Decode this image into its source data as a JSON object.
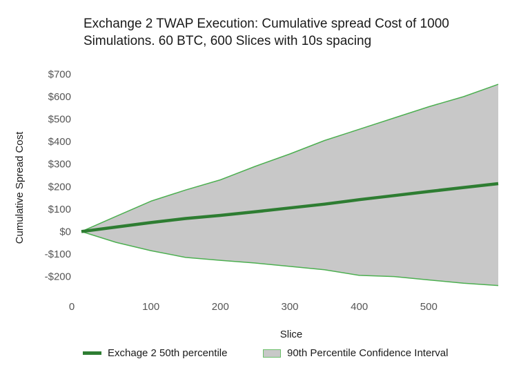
{
  "chart_data": {
    "type": "area",
    "title_line1": "Exchange 2 TWAP Execution: Cumulative spread Cost of 1000",
    "title_line2": "Simulations. 60 BTC, 600 Slices with 10s spacing",
    "xlabel": "Slice",
    "ylabel": "Cumulative Spread Cost",
    "xlim": [
      0,
      600
    ],
    "ylim": [
      -250,
      700
    ],
    "x_ticks": [
      0,
      100,
      200,
      300,
      400,
      500
    ],
    "x_tick_labels": [
      "0",
      "100",
      "200",
      "300",
      "400",
      "500"
    ],
    "y_ticks": [
      700,
      600,
      500,
      400,
      300,
      200,
      100,
      0,
      -100,
      -200
    ],
    "y_tick_labels": [
      "$700",
      "$600",
      "$500",
      "$400",
      "$300",
      "$200",
      "$100",
      "$0",
      "-$100",
      "-$200"
    ],
    "grid": false,
    "legend_position": "bottom",
    "series": [
      {
        "name": "Exchage 2 50th percentile",
        "kind": "line",
        "color": "#2e7d32",
        "x": [
          0,
          50,
          100,
          150,
          200,
          250,
          300,
          350,
          400,
          450,
          500,
          550,
          600
        ],
        "y": [
          0,
          20,
          40,
          58,
          72,
          88,
          105,
          122,
          142,
          160,
          178,
          196,
          213
        ]
      },
      {
        "name": "90th Percentile Confidence Interval",
        "kind": "band",
        "fill": "#c8c8c8",
        "edge": "#4caf50",
        "x": [
          0,
          50,
          100,
          150,
          200,
          250,
          300,
          350,
          400,
          450,
          500,
          550,
          600
        ],
        "upper": [
          0,
          68,
          135,
          185,
          230,
          290,
          345,
          405,
          455,
          505,
          555,
          600,
          655
        ],
        "lower": [
          0,
          -48,
          -85,
          -115,
          -128,
          -140,
          -155,
          -170,
          -195,
          -200,
          -215,
          -230,
          -240
        ]
      }
    ]
  }
}
